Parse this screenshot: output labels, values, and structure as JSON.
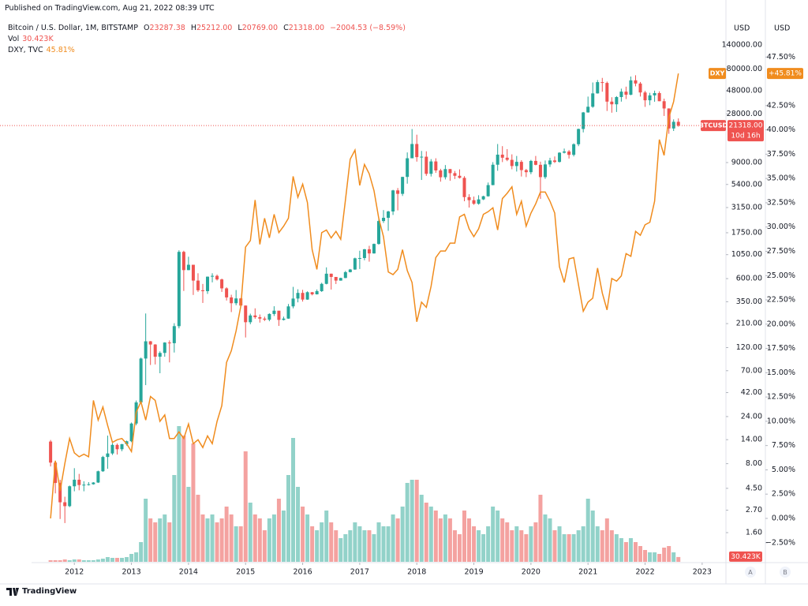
{
  "header": {
    "published": "Published on TradingView.com, Aug 21, 2022 08:39 UTC"
  },
  "footer": {
    "brand": "TradingView"
  },
  "scale_buttons": [
    "A",
    "B"
  ],
  "chart_data": [
    {
      "type": "candlestick",
      "title": "Bitcoin / U.S. Dollar, 1M, BITSTAMP",
      "ohlc": [
        {
          "key": "O",
          "value": "23287.38"
        },
        {
          "key": "H",
          "value": "25212.00"
        },
        {
          "key": "L",
          "value": "20769.00"
        },
        {
          "key": "C",
          "value": "21318.00"
        }
      ],
      "change": "−2004.53 (−8.59%)",
      "axis_label": "USD",
      "x": [
        "2011-08",
        "2011-09",
        "2011-10",
        "2011-11",
        "2011-12",
        "2012-01",
        "2012-02",
        "2012-03",
        "2012-04",
        "2012-05",
        "2012-06",
        "2012-07",
        "2012-08",
        "2012-09",
        "2012-10",
        "2012-11",
        "2012-12",
        "2013-01",
        "2013-02",
        "2013-03",
        "2013-04",
        "2013-05",
        "2013-06",
        "2013-07",
        "2013-08",
        "2013-09",
        "2013-10",
        "2013-11",
        "2013-12",
        "2014-01",
        "2014-02",
        "2014-03",
        "2014-04",
        "2014-05",
        "2014-06",
        "2014-07",
        "2014-08",
        "2014-09",
        "2014-10",
        "2014-11",
        "2014-12",
        "2015-01",
        "2015-02",
        "2015-03",
        "2015-04",
        "2015-05",
        "2015-06",
        "2015-07",
        "2015-08",
        "2015-09",
        "2015-10",
        "2015-11",
        "2015-12",
        "2016-01",
        "2016-02",
        "2016-03",
        "2016-04",
        "2016-05",
        "2016-06",
        "2016-07",
        "2016-08",
        "2016-09",
        "2016-10",
        "2016-11",
        "2016-12",
        "2017-01",
        "2017-02",
        "2017-03",
        "2017-04",
        "2017-05",
        "2017-06",
        "2017-07",
        "2017-08",
        "2017-09",
        "2017-10",
        "2017-11",
        "2017-12",
        "2018-01",
        "2018-02",
        "2018-03",
        "2018-04",
        "2018-05",
        "2018-06",
        "2018-07",
        "2018-08",
        "2018-09",
        "2018-10",
        "2018-11",
        "2018-12",
        "2019-01",
        "2019-02",
        "2019-03",
        "2019-04",
        "2019-05",
        "2019-06",
        "2019-07",
        "2019-08",
        "2019-09",
        "2019-10",
        "2019-11",
        "2019-12",
        "2020-01",
        "2020-02",
        "2020-03",
        "2020-04",
        "2020-05",
        "2020-06",
        "2020-07",
        "2020-08",
        "2020-09",
        "2020-10",
        "2020-11",
        "2020-12",
        "2021-01",
        "2021-02",
        "2021-03",
        "2021-04",
        "2021-05",
        "2021-06",
        "2021-07",
        "2021-08",
        "2021-09",
        "2021-10",
        "2021-11",
        "2021-12",
        "2022-01",
        "2022-02",
        "2022-03",
        "2022-04",
        "2022-05",
        "2022-06",
        "2022-07",
        "2022-08"
      ],
      "open": [
        13.4,
        8.2,
        5.1,
        3.25,
        2.97,
        4.72,
        5.5,
        4.86,
        4.9,
        4.95,
        5.15,
        6.7,
        9.35,
        10.15,
        12.4,
        11.2,
        12.6,
        13.5,
        20.4,
        33.4,
        93,
        139,
        129,
        97,
        106,
        135,
        133,
        198,
        1120,
        732,
        829,
        573,
        457,
        448,
        628,
        640,
        589,
        478,
        387,
        338,
        378,
        320,
        217,
        254,
        244,
        236,
        230,
        263,
        284,
        229,
        236,
        314,
        377,
        430,
        368,
        437,
        416,
        448,
        531,
        673,
        624,
        573,
        609,
        698,
        742,
        964,
        970,
        1190,
        1080,
        1348,
        2300,
        2480,
        2875,
        4700,
        4340,
        6440,
        9950,
        13880,
        10220,
        10320,
        6920,
        9240,
        7490,
        6390,
        7730,
        7030,
        6610,
        6300,
        4020,
        3740,
        3440,
        3810,
        4100,
        5320,
        8560,
        10820,
        10080,
        9590,
        8300,
        9150,
        7550,
        7190,
        9350,
        8540,
        6410,
        8620,
        9450,
        9140,
        11330,
        11650,
        10780,
        13800,
        19700,
        28990,
        33100,
        45200,
        58800,
        57700,
        37300,
        35040,
        41490,
        47100,
        43820,
        61300,
        56900,
        46200,
        38480,
        43180,
        45530,
        37650,
        31790,
        19950,
        23287.38
      ],
      "high": [
        13.9,
        8.5,
        5.5,
        3.7,
        4.8,
        7.2,
        6.3,
        5.3,
        5.2,
        5.2,
        6.8,
        9.6,
        15.4,
        12.9,
        12.8,
        12.7,
        13.7,
        20.9,
        34.9,
        95,
        266,
        140,
        130,
        110,
        136,
        142,
        212,
        1163,
        1150,
        1000,
        700,
        680,
        530,
        630,
        680,
        660,
        600,
        490,
        412,
        460,
        382,
        321,
        265,
        300,
        260,
        247,
        267,
        315,
        283,
        247,
        332,
        495,
        468,
        462,
        446,
        439,
        466,
        545,
        780,
        675,
        619,
        613,
        718,
        752,
        979,
        1150,
        1200,
        1290,
        1360,
        2450,
        2970,
        2920,
        4765,
        4970,
        6450,
        11400,
        19666,
        17250,
        11800,
        11700,
        9760,
        9950,
        7780,
        8490,
        7750,
        7400,
        7680,
        6550,
        4300,
        4070,
        4200,
        4150,
        5650,
        9090,
        13880,
        13200,
        12320,
        10900,
        10500,
        9520,
        7760,
        9580,
        10500,
        9190,
        9450,
        10060,
        10380,
        11450,
        12470,
        12070,
        14100,
        19860,
        29300,
        41950,
        58350,
        61780,
        64900,
        59600,
        41330,
        42400,
        50500,
        52900,
        67000,
        69000,
        59000,
        47990,
        45800,
        48200,
        47450,
        40000,
        31900,
        24650,
        25212
      ],
      "low": [
        7.5,
        4.0,
        2.2,
        2.0,
        2.9,
        4.2,
        4.3,
        4.2,
        4.8,
        4.9,
        5.1,
        6.6,
        7.1,
        9.8,
        9.9,
        10.7,
        12.2,
        13.2,
        19.6,
        32.4,
        50,
        80,
        81,
        66,
        97,
        85,
        107,
        188,
        450,
        730,
        410,
        440,
        340,
        420,
        550,
        574,
        440,
        360,
        275,
        322,
        310,
        152,
        207,
        235,
        215,
        223,
        222,
        251,
        199,
        226,
        235,
        300,
        345,
        351,
        366,
        406,
        414,
        440,
        525,
        465,
        529,
        572,
        606,
        694,
        737,
        751,
        920,
        891,
        1076,
        1325,
        2200,
        1830,
        2650,
        2950,
        4130,
        5500,
        10000,
        9200,
        6000,
        6600,
        6500,
        7080,
        5760,
        6070,
        5880,
        6130,
        6200,
        3650,
        3150,
        3360,
        3370,
        3750,
        4060,
        5300,
        7430,
        9100,
        9300,
        7700,
        7300,
        6500,
        6410,
        6860,
        8440,
        3850,
        6150,
        8120,
        8900,
        9000,
        11130,
        9880,
        10380,
        13200,
        18200,
        28800,
        32300,
        44950,
        47000,
        30000,
        28800,
        29300,
        37300,
        39600,
        43300,
        53300,
        42000,
        33000,
        34300,
        37200,
        37700,
        26700,
        17600,
        18800,
        20769
      ],
      "close": [
        8.2,
        5.1,
        3.25,
        2.97,
        4.72,
        5.5,
        4.86,
        4.9,
        4.95,
        5.15,
        6.7,
        9.35,
        10.15,
        12.4,
        11.2,
        12.6,
        13.5,
        20.4,
        33.4,
        93,
        139,
        129,
        97,
        106,
        135,
        133,
        198,
        1120,
        732,
        829,
        573,
        457,
        448,
        628,
        640,
        589,
        478,
        387,
        338,
        378,
        320,
        217,
        254,
        244,
        236,
        230,
        263,
        284,
        229,
        236,
        314,
        377,
        430,
        368,
        437,
        416,
        448,
        531,
        673,
        624,
        573,
        609,
        698,
        742,
        964,
        970,
        1190,
        1080,
        1348,
        2300,
        2480,
        2875,
        4700,
        4340,
        6440,
        9950,
        13880,
        10220,
        10320,
        6920,
        9240,
        7490,
        6390,
        7730,
        7030,
        6610,
        6300,
        4020,
        3740,
        3440,
        3810,
        4100,
        5320,
        8560,
        10820,
        10080,
        9590,
        8300,
        9150,
        7550,
        7190,
        9350,
        8540,
        6410,
        8620,
        9450,
        9140,
        11330,
        11650,
        10780,
        13800,
        19700,
        28990,
        33100,
        45200,
        58800,
        57700,
        37300,
        35040,
        41490,
        47100,
        43820,
        61300,
        56900,
        46200,
        38480,
        43180,
        45530,
        37650,
        31790,
        19950,
        23290,
        21318
      ],
      "up_color": "#26a69a",
      "down_color": "#ef5350",
      "log_scale": true,
      "xlim": [
        "2011-04",
        "2023-06"
      ],
      "xticks": [
        2012,
        2013,
        2014,
        2015,
        2016,
        2017,
        2018,
        2019,
        2020,
        2021,
        2022,
        2023
      ],
      "ylim": [
        0.81,
        243000
      ],
      "yticks": [
        {
          "value": 140000,
          "label": "140000.00"
        },
        {
          "value": 80000,
          "label": "80000.00"
        },
        {
          "value": 48000,
          "label": "48000.00"
        },
        {
          "value": 28000,
          "label": "28000.00"
        },
        {
          "value": 9000,
          "label": "9000.00"
        },
        {
          "value": 5400,
          "label": "5400.00"
        },
        {
          "value": 3150,
          "label": "3150.00"
        },
        {
          "value": 1750,
          "label": "1750.00"
        },
        {
          "value": 1050,
          "label": "1050.00"
        },
        {
          "value": 600,
          "label": "600.00"
        },
        {
          "value": 350,
          "label": "350.00"
        },
        {
          "value": 210,
          "label": "210.00"
        },
        {
          "value": 120,
          "label": "120.00"
        },
        {
          "value": 70,
          "label": "70.00"
        },
        {
          "value": 42,
          "label": "42.00"
        },
        {
          "value": 24,
          "label": "24.00"
        },
        {
          "value": 14,
          "label": "14.00"
        },
        {
          "value": 8,
          "label": "8.00"
        },
        {
          "value": 4.5,
          "label": "4.50"
        },
        {
          "value": 2.7,
          "label": "2.70"
        },
        {
          "value": 1.6,
          "label": "1.60"
        }
      ],
      "last_price": {
        "name": "BTCUSD",
        "label": "21318.00",
        "countdown": "10d 16h"
      }
    },
    {
      "type": "bar",
      "name": "Vol",
      "last_label": "30.423K",
      "values": [
        10000,
        10000,
        10000,
        15000,
        10000,
        15000,
        15000,
        10000,
        10000,
        10000,
        15000,
        20000,
        30000,
        25000,
        25000,
        25000,
        30000,
        50000,
        60000,
        125000,
        400000,
        275000,
        250000,
        275000,
        300000,
        250000,
        550000,
        860000,
        800000,
        475000,
        750000,
        425000,
        300000,
        275000,
        300000,
        250000,
        275000,
        350000,
        300000,
        225000,
        225000,
        700000,
        375000,
        300000,
        275000,
        200000,
        275000,
        300000,
        400000,
        325000,
        550000,
        785000,
        475000,
        350000,
        300000,
        225000,
        200000,
        250000,
        325000,
        250000,
        200000,
        150000,
        175000,
        200000,
        250000,
        225000,
        200000,
        200000,
        175000,
        250000,
        225000,
        225000,
        300000,
        275000,
        350000,
        500000,
        520000,
        520000,
        425000,
        375000,
        350000,
        325000,
        275000,
        300000,
        275000,
        200000,
        175000,
        325000,
        275000,
        225000,
        200000,
        175000,
        225000,
        350000,
        325000,
        275000,
        250000,
        200000,
        225000,
        200000,
        175000,
        225000,
        250000,
        425000,
        300000,
        275000,
        200000,
        225000,
        175000,
        175000,
        175000,
        200000,
        225000,
        400000,
        325000,
        225000,
        200000,
        275000,
        200000,
        175000,
        150000,
        125000,
        150000,
        125000,
        100000,
        75000,
        60000,
        60000,
        50000,
        90000,
        100000,
        60000,
        30423
      ],
      "up_color": "#92d2c9",
      "down_color": "#f4a2a0",
      "ylim": [
        0,
        3425000
      ]
    },
    {
      "type": "line",
      "name": "DXY, TVC",
      "last_label": "45.81%",
      "badge_name": "DXY",
      "badge_label": "+45.81%",
      "axis_label": "USD",
      "color": "#f08c1e",
      "values": [
        0,
        5.94,
        2.83,
        5.67,
        8.23,
        6.75,
        6.34,
        6.61,
        6.34,
        12.15,
        10.12,
        11.47,
        9.58,
        7.83,
        8.1,
        8.23,
        7.69,
        6.88,
        10.93,
        12.01,
        10.12,
        12.55,
        12.15,
        9.99,
        10.66,
        8.23,
        8.23,
        8.91,
        8.23,
        9.72,
        7.69,
        8.1,
        7.29,
        8.5,
        7.69,
        9.99,
        11.61,
        16.06,
        17.27,
        19.3,
        21.86,
        27.94,
        28.61,
        32.79,
        28.21,
        30.9,
        28.88,
        31.31,
        29.42,
        30.09,
        30.9,
        35.22,
        33.06,
        34.41,
        32.52,
        27.67,
        25.64,
        29.42,
        29.69,
        28.88,
        29.55,
        28.74,
        32.79,
        36.98,
        37.92,
        34.28,
        36.44,
        35.49,
        33.74,
        30.9,
        29.01,
        25.37,
        25.1,
        25.64,
        27.67,
        25.51,
        24.29,
        20.24,
        22.27,
        21.73,
        23.89,
        26.86,
        27.53,
        27.53,
        28.34,
        28.34,
        31.04,
        31.31,
        29.82,
        29.01,
        29.82,
        31.31,
        31.58,
        31.98,
        29.69,
        32.93,
        33.47,
        34.14,
        31.31,
        32.66,
        30.09,
        31.44,
        32.39,
        33.6,
        33.6,
        32.66,
        31.44,
        25.91,
        24.29,
        26.72,
        26.86,
        24.02,
        21.32,
        22.27,
        22.67,
        25.78,
        23.21,
        21.46,
        24.7,
        24.43,
        24.97,
        27.26,
        26.99,
        29.55,
        29.15,
        30.23,
        30.5,
        32.66,
        39,
        37.38,
        41.3,
        42.91,
        45.81
      ],
      "ylim": [
        -4.47,
        51.18
      ],
      "yticks": [
        {
          "value": 47.5,
          "label": "47.50%"
        },
        {
          "value": 42.5,
          "label": "42.50%"
        },
        {
          "value": 40,
          "label": "40.00%"
        },
        {
          "value": 37.5,
          "label": "37.50%"
        },
        {
          "value": 35,
          "label": "35.00%"
        },
        {
          "value": 32.5,
          "label": "32.50%"
        },
        {
          "value": 30,
          "label": "30.00%"
        },
        {
          "value": 27.5,
          "label": "27.50%"
        },
        {
          "value": 25,
          "label": "25.00%"
        },
        {
          "value": 22.5,
          "label": "22.50%"
        },
        {
          "value": 20,
          "label": "20.00%"
        },
        {
          "value": 17.5,
          "label": "17.50%"
        },
        {
          "value": 15,
          "label": "15.00%"
        },
        {
          "value": 12.5,
          "label": "12.50%"
        },
        {
          "value": 10,
          "label": "10.00%"
        },
        {
          "value": 7.5,
          "label": "7.50%"
        },
        {
          "value": 5,
          "label": "5.00%"
        },
        {
          "value": 2.5,
          "label": "2.50%"
        },
        {
          "value": 0,
          "label": "0.00%"
        },
        {
          "value": -2.5,
          "label": "−2.50%"
        }
      ]
    }
  ]
}
